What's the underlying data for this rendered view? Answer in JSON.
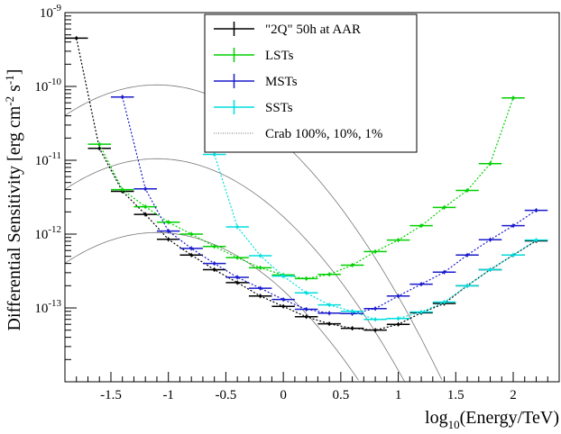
{
  "chart_data": {
    "type": "line",
    "xlabel": "log10(Energy/TeV)",
    "ylabel": "Differential Sensitivity [erg cm-2 s-1]",
    "xlim": [
      -1.9,
      2.4
    ],
    "ylim": [
      1e-14,
      1e-09
    ],
    "yscale": "log",
    "legend_position": "top-right",
    "x_ticks": [
      "-1.5",
      "-1",
      "-0.5",
      "0",
      "0.5",
      "1",
      "1.5",
      "2"
    ],
    "x_tick_values": [
      -1.5,
      -1,
      -0.5,
      0,
      0.5,
      1,
      1.5,
      2
    ],
    "y_ticks": [
      {
        "base": "10",
        "exp": "-13",
        "value": 1e-13
      },
      {
        "base": "10",
        "exp": "-12",
        "value": 1e-12
      },
      {
        "base": "10",
        "exp": "-11",
        "value": 1e-11
      },
      {
        "base": "10",
        "exp": "-10",
        "value": 1e-10
      },
      {
        "base": "10",
        "exp": "-9",
        "value": 1e-09
      }
    ],
    "series": [
      {
        "name": "\"2Q\" 50h at AAR",
        "color": "#000000",
        "x": [
          -1.8,
          -1.6,
          -1.4,
          -1.2,
          -1.0,
          -0.8,
          -0.6,
          -0.4,
          -0.2,
          0.0,
          0.2,
          0.4,
          0.6,
          0.8,
          1.0,
          1.2,
          1.4,
          1.6,
          1.8,
          2.0,
          2.2
        ],
        "y": [
          4.5e-10,
          1.45e-11,
          3.8e-12,
          1.85e-12,
          8.5e-13,
          5.2e-13,
          3.3e-13,
          2.2e-13,
          1.45e-13,
          1.05e-13,
          7.6e-14,
          6.1e-14,
          5.3e-14,
          5e-14,
          6e-14,
          8.6e-14,
          1.15e-13,
          2e-13,
          3.3e-13,
          5.2e-13,
          8.1e-13
        ]
      },
      {
        "name": "LSTs",
        "color": "#00d000",
        "x": [
          -1.6,
          -1.4,
          -1.2,
          -1.0,
          -0.8,
          -0.6,
          -0.4,
          -0.2,
          0.0,
          0.2,
          0.4,
          0.6,
          0.8,
          1.0,
          1.2,
          1.4,
          1.6,
          1.8,
          2.0
        ],
        "y": [
          1.65e-11,
          4e-12,
          2.35e-12,
          1.45e-12,
          1e-12,
          6.8e-13,
          4.8e-13,
          3.5e-13,
          2.8e-13,
          2.5e-13,
          2.85e-13,
          3.8e-13,
          5.8e-13,
          8.3e-13,
          1.3e-12,
          2.3e-12,
          3.9e-12,
          9e-12,
          7e-11
        ]
      },
      {
        "name": "MSTs",
        "color": "#1a1acc",
        "x": [
          -1.4,
          -1.2,
          -1.0,
          -0.8,
          -0.6,
          -0.4,
          -0.2,
          0.0,
          0.2,
          0.4,
          0.6,
          0.8,
          1.0,
          1.2,
          1.4,
          1.6,
          1.8,
          2.0,
          2.2
        ],
        "y": [
          7.2e-11,
          4.1e-12,
          1.1e-12,
          6.4e-13,
          4e-13,
          2.6e-13,
          1.85e-13,
          1.3e-13,
          9.6e-14,
          8.5e-14,
          8.4e-14,
          9.8e-14,
          1.45e-13,
          2.1e-13,
          3.05e-13,
          5.2e-13,
          8.4e-13,
          1.3e-12,
          2.1e-12
        ]
      },
      {
        "name": "SSTs",
        "color": "#00dddd",
        "x": [
          -0.6,
          -0.4,
          -0.2,
          0.0,
          0.2,
          0.4,
          0.6,
          0.8,
          1.0,
          1.2,
          1.4,
          1.6,
          1.8,
          2.0,
          2.2
        ],
        "y": [
          1.2e-11,
          1.25e-12,
          5.1e-13,
          2.7e-13,
          1.6e-13,
          1.1e-13,
          9e-14,
          7e-14,
          7.2e-14,
          8.8e-14,
          1.2e-13,
          2e-13,
          3.3e-13,
          5.2e-13,
          8.3e-13
        ]
      }
    ],
    "reference_curves": {
      "name": "Crab 100%, 10%, 1%",
      "color": "#777777",
      "peak_x": -1.1,
      "peak_values": [
        1.05e-10,
        1.05e-11,
        1.05e-12
      ],
      "curvature": 0.65
    }
  }
}
